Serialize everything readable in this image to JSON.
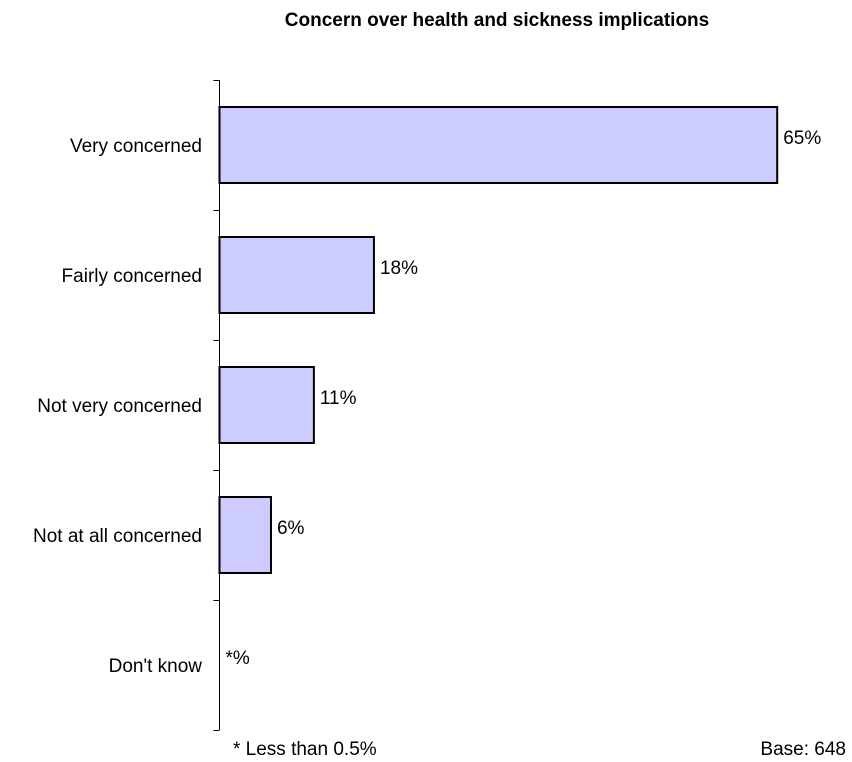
{
  "chart_data": {
    "type": "bar",
    "orientation": "horizontal",
    "title": "Concern over health and sickness implications",
    "categories": [
      "Very concerned",
      "Fairly concerned",
      "Not very concerned",
      "Not at all concerned",
      "Don't know"
    ],
    "values": [
      65,
      18,
      11,
      6,
      0
    ],
    "value_labels": [
      "65%",
      "18%",
      "11%",
      "6%",
      "*%"
    ],
    "bar_color": "#ccccff",
    "bar_stroke": "#000000",
    "grid": false,
    "legend": "none"
  },
  "footnote": "* Less than 0.5%",
  "base_note": "Base: 648"
}
